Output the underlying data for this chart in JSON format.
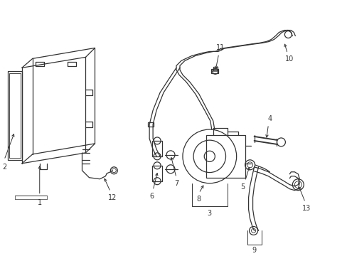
{
  "bg_color": "#ffffff",
  "line_color": "#333333",
  "figsize": [
    4.89,
    3.6
  ],
  "dpi": 100,
  "label_fs": 7,
  "lw": 0.9
}
